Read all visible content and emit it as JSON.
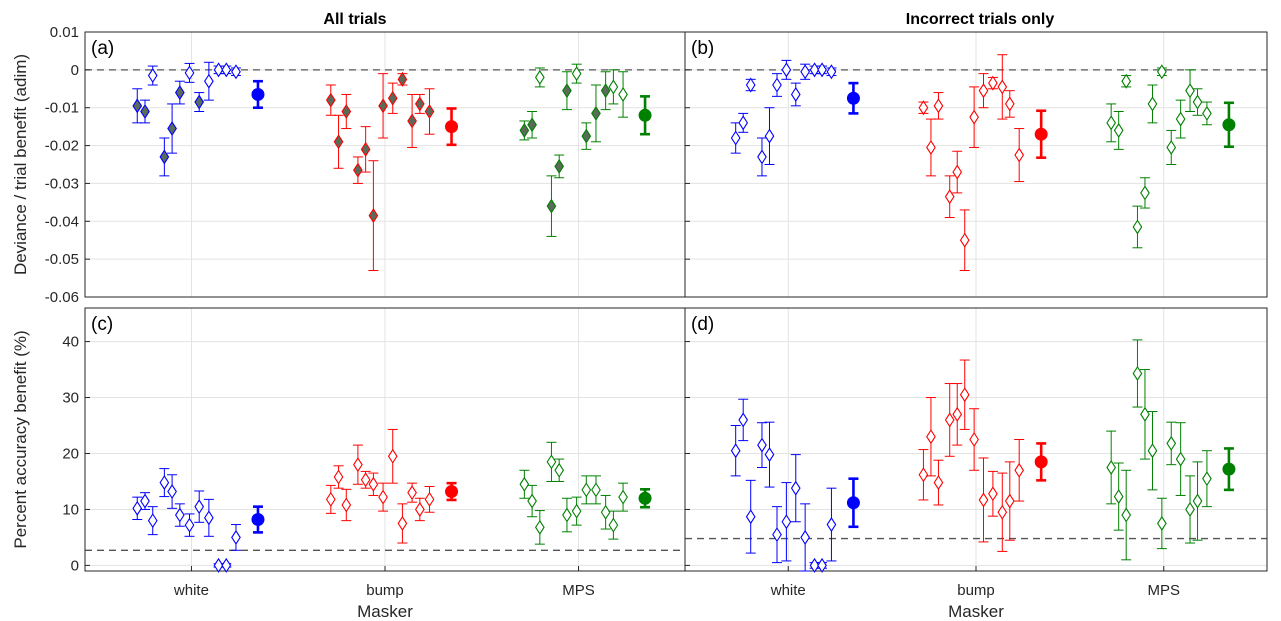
{
  "titles": [
    "All trials",
    "Incorrect trials only"
  ],
  "colors": {
    "white": "#0000ff",
    "bump": "#ff0000",
    "MPS": "#008000",
    "filled_diamond": "#5a6b5a",
    "refline": "#555555",
    "grid": "#e3e3e3",
    "axis": "#262626"
  },
  "chart_data": [
    {
      "panel": "(a)",
      "type": "scatter",
      "title": "All trials",
      "ylabel": "Deviance / trial benefit (adim)",
      "xlabel": "",
      "ylim": [
        -0.06,
        0.01
      ],
      "yticks": [
        "0.01",
        "0",
        "-0.01",
        "-0.02",
        "-0.03",
        "-0.04",
        "-0.05",
        "-0.06"
      ],
      "xticks": [
        "white",
        "bump",
        "MPS"
      ],
      "refline": 0,
      "grid": true,
      "diamond_fill": "filled",
      "series": [
        {
          "group": "white",
          "x": [
            0.72,
            0.76,
            0.8,
            0.86,
            0.9,
            0.94,
            0.99,
            1.04,
            1.09,
            1.14,
            1.18,
            1.23
          ],
          "y": [
            -0.0095,
            -0.011,
            -0.0015,
            -0.023,
            -0.0155,
            -0.006,
            -0.0008,
            -0.0085,
            -0.003,
            0.0,
            0.0,
            -0.0005
          ],
          "err": [
            0.0045,
            0.003,
            0.0025,
            0.005,
            0.0065,
            0.003,
            0.0025,
            0.0025,
            0.005,
            0.001,
            0.001,
            0.001
          ],
          "filled": [
            true,
            true,
            false,
            true,
            true,
            true,
            false,
            true,
            false,
            false,
            false,
            false
          ],
          "mean": -0.0065,
          "mean_err": 0.0035
        },
        {
          "group": "bump",
          "x": [
            1.72,
            1.76,
            1.8,
            1.86,
            1.9,
            1.94,
            1.99,
            2.04,
            2.09,
            2.14,
            2.18,
            2.23
          ],
          "y": [
            -0.008,
            -0.019,
            -0.011,
            -0.0265,
            -0.021,
            -0.0385,
            -0.0095,
            -0.0075,
            -0.0025,
            -0.0135,
            -0.009,
            -0.011
          ],
          "err": [
            0.004,
            0.007,
            0.0045,
            0.0035,
            0.006,
            0.0145,
            0.0085,
            0.004,
            0.0015,
            0.007,
            0.0025,
            0.006
          ],
          "filled": [
            true,
            true,
            true,
            true,
            true,
            true,
            true,
            true,
            true,
            true,
            true,
            true
          ],
          "mean": -0.015,
          "mean_err": 0.0048
        },
        {
          "group": "MPS",
          "x": [
            2.72,
            2.76,
            2.8,
            2.86,
            2.9,
            2.94,
            2.99,
            3.04,
            3.09,
            3.14,
            3.18,
            3.23
          ],
          "y": [
            -0.016,
            -0.0145,
            -0.002,
            -0.036,
            -0.0255,
            -0.0055,
            -0.001,
            -0.0175,
            -0.0115,
            -0.0055,
            -0.0045,
            -0.0065
          ],
          "err": [
            0.0025,
            0.0035,
            0.0025,
            0.008,
            0.003,
            0.005,
            0.0025,
            0.0035,
            0.0075,
            0.005,
            0.0045,
            0.006
          ],
          "filled": [
            true,
            true,
            false,
            true,
            true,
            true,
            false,
            true,
            true,
            true,
            false,
            false
          ],
          "mean": -0.012,
          "mean_err": 0.005
        }
      ]
    },
    {
      "panel": "(b)",
      "type": "scatter",
      "title": "Incorrect trials only",
      "ylabel": "",
      "xlabel": "",
      "ylim": [
        -0.06,
        0.01
      ],
      "yticks": [],
      "xticks": [
        "white",
        "bump",
        "MPS"
      ],
      "refline": 0,
      "grid": true,
      "diamond_fill": "open",
      "series": [
        {
          "group": "white",
          "x": [
            0.72,
            0.76,
            0.8,
            0.86,
            0.9,
            0.94,
            0.99,
            1.04,
            1.09,
            1.14,
            1.18,
            1.23
          ],
          "y": [
            -0.018,
            -0.014,
            -0.004,
            -0.023,
            -0.0175,
            -0.004,
            0.0,
            -0.0065,
            -0.0005,
            0.0,
            0.0,
            -0.0005
          ],
          "err": [
            0.004,
            0.0025,
            0.0015,
            0.005,
            0.0075,
            0.003,
            0.0025,
            0.003,
            0.002,
            0.001,
            0.001,
            0.001
          ],
          "mean": -0.0075,
          "mean_err": 0.004
        },
        {
          "group": "bump",
          "x": [
            1.72,
            1.76,
            1.8,
            1.86,
            1.9,
            1.94,
            1.99,
            2.04,
            2.09,
            2.14,
            2.18,
            2.23
          ],
          "y": [
            -0.01,
            -0.0205,
            -0.0095,
            -0.0335,
            -0.027,
            -0.045,
            -0.0125,
            -0.0055,
            -0.0035,
            -0.0045,
            -0.009,
            -0.0225
          ],
          "err": [
            0.0015,
            0.0075,
            0.0035,
            0.0055,
            0.0055,
            0.008,
            0.008,
            0.0045,
            0.0015,
            0.0085,
            0.0035,
            0.007
          ],
          "mean": -0.017,
          "mean_err": 0.0062
        },
        {
          "group": "MPS",
          "x": [
            2.72,
            2.76,
            2.8,
            2.86,
            2.9,
            2.94,
            2.99,
            3.04,
            3.09,
            3.14,
            3.18,
            3.23
          ],
          "y": [
            -0.014,
            -0.016,
            -0.003,
            -0.0415,
            -0.0325,
            -0.009,
            -0.0005,
            -0.0205,
            -0.013,
            -0.0055,
            -0.0085,
            -0.0115
          ],
          "err": [
            0.005,
            0.005,
            0.0015,
            0.0055,
            0.004,
            0.005,
            0.001,
            0.0045,
            0.005,
            0.0055,
            0.0035,
            0.003
          ],
          "mean": -0.0145,
          "mean_err": 0.0058
        }
      ]
    },
    {
      "panel": "(c)",
      "type": "scatter",
      "title": "",
      "ylabel": "Percent accuracy benefit (%)",
      "xlabel": "Masker",
      "ylim": [
        -1,
        46
      ],
      "yticks": [
        "40",
        "30",
        "20",
        "10",
        "0"
      ],
      "xticks": [
        "white",
        "bump",
        "MPS"
      ],
      "refline": 2.7,
      "grid": true,
      "diamond_fill": "open",
      "series": [
        {
          "group": "white",
          "x": [
            0.72,
            0.76,
            0.8,
            0.86,
            0.9,
            0.94,
            0.99,
            1.04,
            1.09,
            1.14,
            1.18,
            1.23
          ],
          "y": [
            10.2,
            11.5,
            8.0,
            14.8,
            13.2,
            9.0,
            7.2,
            10.5,
            8.5,
            0.0,
            0.0,
            5.0
          ],
          "err": [
            2.0,
            1.5,
            2.5,
            2.5,
            3.0,
            2.0,
            2.0,
            2.8,
            3.3,
            0.3,
            0.3,
            2.3
          ],
          "mean": 8.2,
          "mean_err": 2.3
        },
        {
          "group": "bump",
          "x": [
            1.72,
            1.76,
            1.8,
            1.86,
            1.9,
            1.94,
            1.99,
            2.04,
            2.09,
            2.14,
            2.18,
            2.23
          ],
          "y": [
            11.8,
            15.8,
            10.8,
            18.0,
            15.3,
            14.5,
            12.2,
            19.5,
            7.5,
            13.0,
            10.0,
            11.8
          ],
          "err": [
            2.5,
            2.0,
            2.8,
            3.5,
            1.5,
            2.0,
            2.5,
            4.8,
            3.5,
            1.7,
            2.0,
            2.3
          ],
          "mean": 13.2,
          "mean_err": 1.5
        },
        {
          "group": "MPS",
          "x": [
            2.72,
            2.76,
            2.8,
            2.86,
            2.9,
            2.94,
            2.99,
            3.04,
            3.09,
            3.14,
            3.18,
            3.23
          ],
          "y": [
            14.5,
            11.5,
            6.8,
            18.5,
            17.0,
            9.0,
            9.7,
            13.5,
            13.5,
            9.5,
            7.2,
            12.2
          ],
          "err": [
            2.5,
            2.8,
            3.0,
            3.5,
            2.0,
            3.0,
            2.5,
            2.5,
            2.5,
            3.0,
            2.5,
            2.5
          ],
          "mean": 12.0,
          "mean_err": 1.6
        }
      ]
    },
    {
      "panel": "(d)",
      "type": "scatter",
      "title": "",
      "ylabel": "",
      "xlabel": "Masker",
      "ylim": [
        -1,
        46
      ],
      "yticks": [],
      "xticks": [
        "white",
        "bump",
        "MPS"
      ],
      "refline": 4.8,
      "grid": true,
      "diamond_fill": "open",
      "series": [
        {
          "group": "white",
          "x": [
            0.72,
            0.76,
            0.8,
            0.86,
            0.9,
            0.94,
            0.99,
            1.04,
            1.09,
            1.14,
            1.18,
            1.23
          ],
          "y": [
            20.5,
            26.0,
            8.7,
            21.5,
            19.8,
            5.5,
            7.8,
            13.8,
            5.0,
            0.0,
            0.0,
            7.3
          ],
          "err": [
            4.5,
            3.7,
            6.5,
            4.0,
            5.8,
            5.0,
            7.0,
            6.0,
            6.0,
            0.5,
            0.5,
            6.5
          ],
          "mean": 11.2,
          "mean_err": 4.3
        },
        {
          "group": "bump",
          "x": [
            1.72,
            1.76,
            1.8,
            1.86,
            1.9,
            1.94,
            1.99,
            2.04,
            2.09,
            2.14,
            2.18,
            2.23
          ],
          "y": [
            16.2,
            23.0,
            14.8,
            26.0,
            27.0,
            30.5,
            22.5,
            11.7,
            12.8,
            9.5,
            11.5,
            17.0
          ],
          "err": [
            4.5,
            7.0,
            4.0,
            6.5,
            5.5,
            6.2,
            5.5,
            7.5,
            4.0,
            7.0,
            7.0,
            5.5
          ],
          "mean": 18.5,
          "mean_err": 3.3
        },
        {
          "group": "MPS",
          "x": [
            2.72,
            2.76,
            2.8,
            2.86,
            2.9,
            2.94,
            2.99,
            3.04,
            3.09,
            3.14,
            3.18,
            3.23
          ],
          "y": [
            17.5,
            12.3,
            9.0,
            34.3,
            27.0,
            20.5,
            7.5,
            21.8,
            19.0,
            10.0,
            11.5,
            15.5
          ],
          "err": [
            6.5,
            6.0,
            8.0,
            6.0,
            8.0,
            7.0,
            4.5,
            3.8,
            6.5,
            6.0,
            7.0,
            5.0
          ],
          "mean": 17.2,
          "mean_err": 3.7
        }
      ]
    }
  ]
}
